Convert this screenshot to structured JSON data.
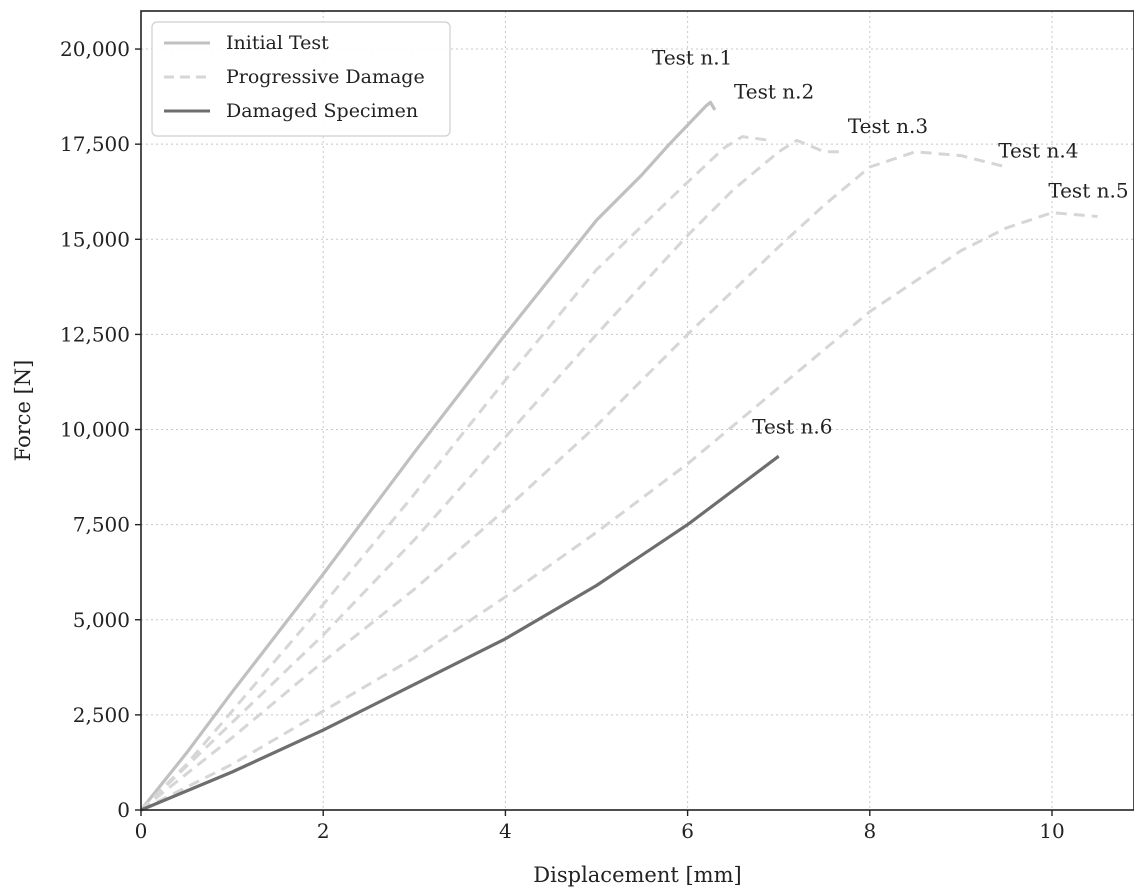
{
  "chart_data": {
    "type": "line",
    "xlabel": "Displacement [mm]",
    "ylabel": "Force [N]",
    "xlim": [
      0,
      10.9
    ],
    "ylim": [
      0,
      21000
    ],
    "xticks": [
      0,
      2,
      4,
      6,
      8,
      10
    ],
    "yticks": [
      0,
      2500,
      5000,
      7500,
      10000,
      12500,
      15000,
      17500,
      20000
    ],
    "x_tick_labels": [
      "0",
      "2",
      "4",
      "6",
      "8",
      "10"
    ],
    "y_tick_labels": [
      "0",
      "2,500",
      "5,000",
      "7,500",
      "10,000",
      "12,500",
      "15,000",
      "17,500",
      "20,000"
    ],
    "grid": true,
    "legend_position": "top-left",
    "legend": [
      {
        "label": "Initial Test",
        "style": "solid",
        "color": "#c0c0c0"
      },
      {
        "label": "Progressive Damage",
        "style": "dashed",
        "color": "#d6d6d6"
      },
      {
        "label": "Damaged Specimen",
        "style": "solid",
        "color": "#6e6e6e"
      }
    ],
    "series": [
      {
        "group": "Initial Test",
        "annotation": "Test n.1",
        "style": "solid",
        "color": "#c0c0c0",
        "points": [
          [
            0,
            0
          ],
          [
            0.5,
            1500
          ],
          [
            1,
            3100
          ],
          [
            2,
            6200
          ],
          [
            3,
            9400
          ],
          [
            4,
            12500
          ],
          [
            4.5,
            14000
          ],
          [
            5,
            15500
          ],
          [
            5.5,
            16700
          ],
          [
            5.8,
            17500
          ],
          [
            6.0,
            18000
          ],
          [
            6.2,
            18500
          ],
          [
            6.25,
            18600
          ],
          [
            6.3,
            18400
          ]
        ],
        "label_at": [
          6.05,
          19600
        ]
      },
      {
        "group": "Progressive Damage",
        "annotation": "Test n.2",
        "style": "dashed",
        "color": "#d6d6d6",
        "points": [
          [
            0,
            0
          ],
          [
            0.5,
            1200
          ],
          [
            1,
            2600
          ],
          [
            2,
            5400
          ],
          [
            3,
            8300
          ],
          [
            4,
            11300
          ],
          [
            5,
            14200
          ],
          [
            6,
            16500
          ],
          [
            6.4,
            17400
          ],
          [
            6.6,
            17700
          ],
          [
            6.9,
            17600
          ]
        ],
        "label_at": [
          6.95,
          18700
        ]
      },
      {
        "group": "Progressive Damage",
        "annotation": "Test n.3",
        "style": "dashed",
        "color": "#d6d6d6",
        "points": [
          [
            0,
            0
          ],
          [
            1,
            2300
          ],
          [
            2,
            4600
          ],
          [
            3,
            7100
          ],
          [
            4,
            9800
          ],
          [
            5,
            12500
          ],
          [
            6,
            15100
          ],
          [
            6.5,
            16300
          ],
          [
            7,
            17300
          ],
          [
            7.2,
            17600
          ],
          [
            7.5,
            17300
          ],
          [
            7.7,
            17300
          ]
        ],
        "label_at": [
          8.2,
          17800
        ]
      },
      {
        "group": "Progressive Damage",
        "annotation": "Test n.4",
        "style": "dashed",
        "color": "#d6d6d6",
        "points": [
          [
            0,
            0
          ],
          [
            1,
            1900
          ],
          [
            2,
            3900
          ],
          [
            3,
            5800
          ],
          [
            4,
            7900
          ],
          [
            5,
            10100
          ],
          [
            6,
            12500
          ],
          [
            7,
            14800
          ],
          [
            7.5,
            15900
          ],
          [
            8,
            16900
          ],
          [
            8.5,
            17300
          ],
          [
            9,
            17200
          ],
          [
            9.5,
            16900
          ]
        ],
        "label_at": [
          9.85,
          17150
        ]
      },
      {
        "group": "Progressive Damage",
        "annotation": "Test n.5",
        "style": "dashed",
        "color": "#d6d6d6",
        "points": [
          [
            0,
            0
          ],
          [
            1,
            1200
          ],
          [
            2,
            2600
          ],
          [
            3,
            4000
          ],
          [
            4,
            5600
          ],
          [
            5,
            7300
          ],
          [
            6,
            9100
          ],
          [
            7,
            11100
          ],
          [
            8,
            13100
          ],
          [
            9,
            14700
          ],
          [
            9.5,
            15300
          ],
          [
            10,
            15700
          ],
          [
            10.5,
            15600
          ]
        ],
        "label_at": [
          10.4,
          16100
        ]
      },
      {
        "group": "Damaged Specimen",
        "annotation": "Test n.6",
        "style": "solid",
        "color": "#6e6e6e",
        "points": [
          [
            0,
            0
          ],
          [
            1,
            1000
          ],
          [
            2,
            2100
          ],
          [
            3,
            3300
          ],
          [
            4,
            4500
          ],
          [
            5,
            5900
          ],
          [
            6,
            7500
          ],
          [
            6.5,
            8400
          ],
          [
            7,
            9300
          ]
        ],
        "label_at": [
          7.15,
          9900
        ]
      }
    ]
  }
}
